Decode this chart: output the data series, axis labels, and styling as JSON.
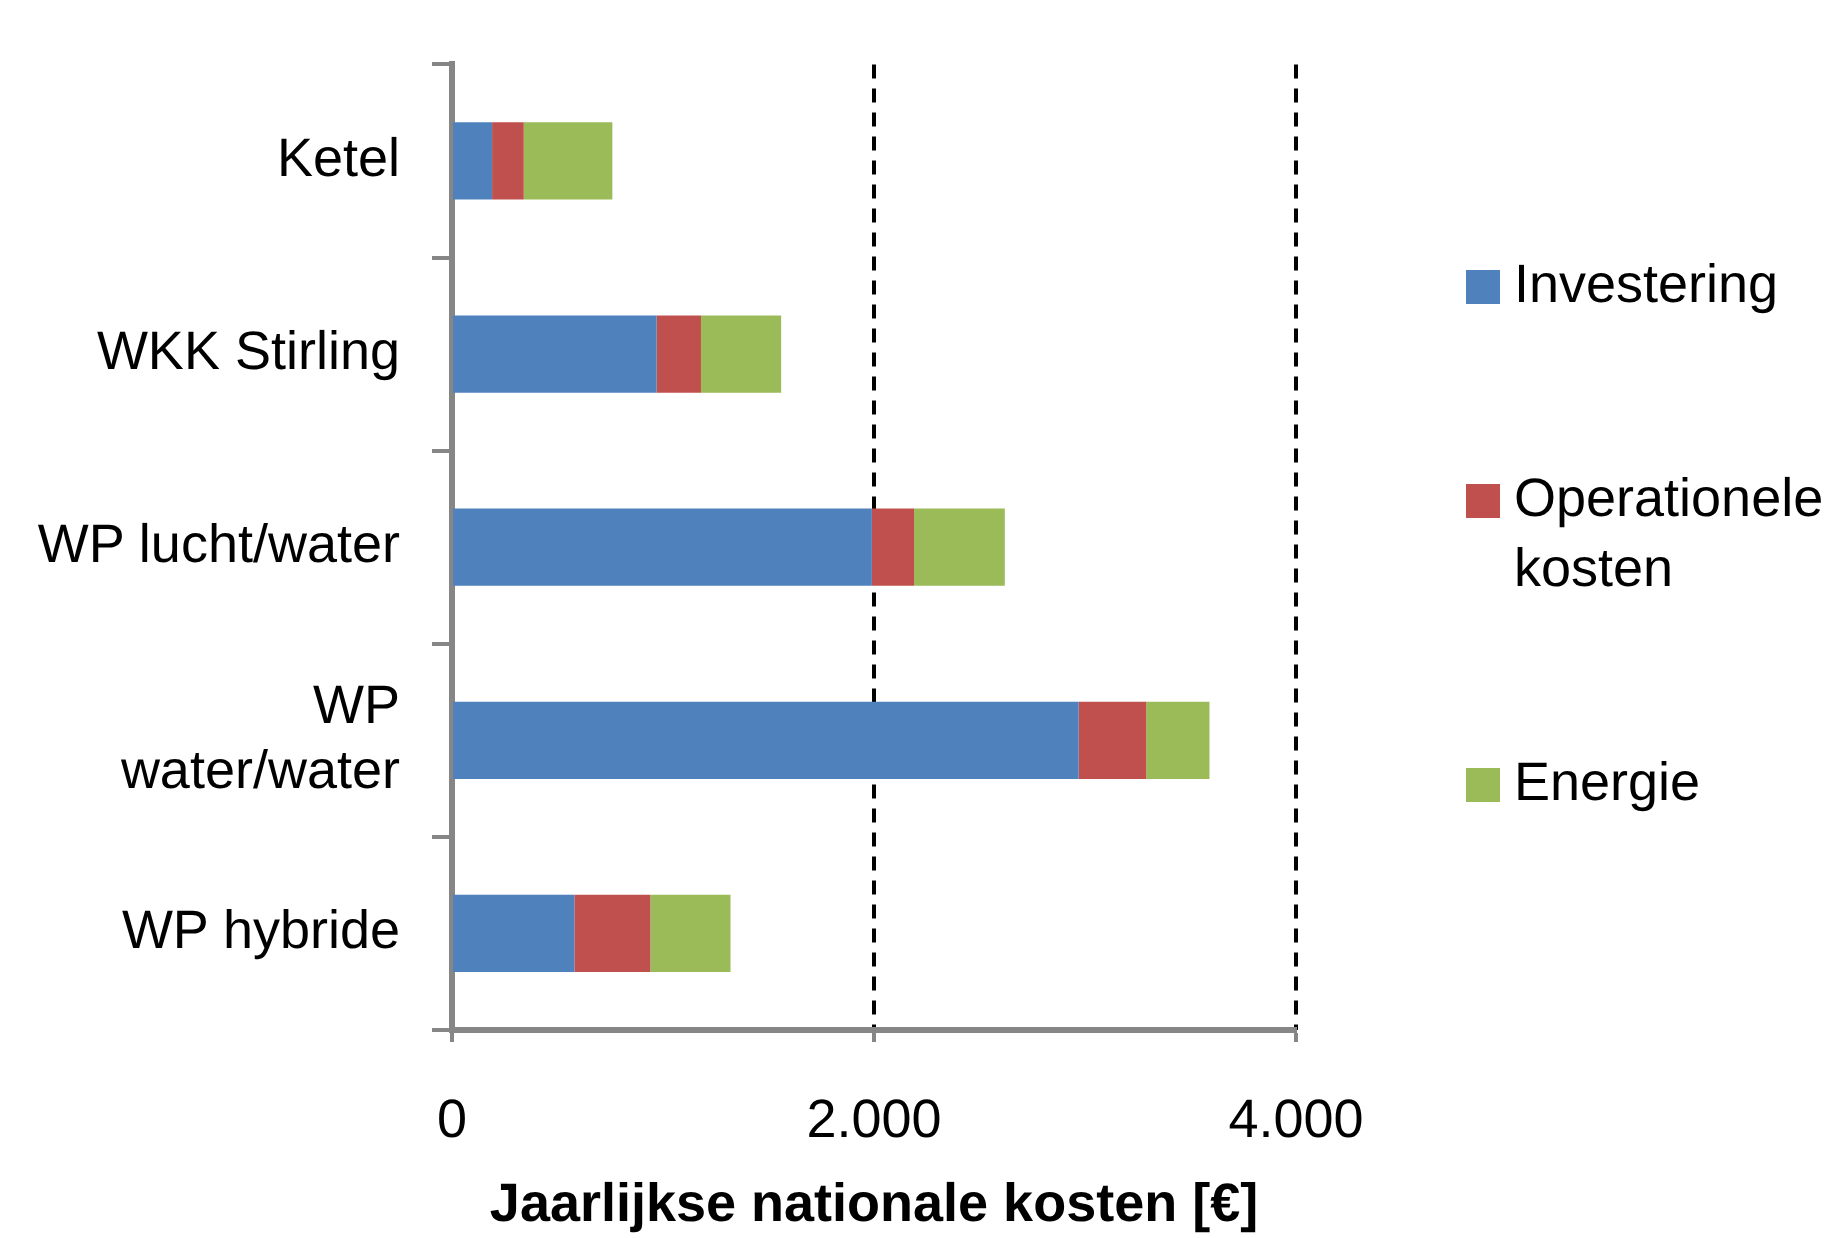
{
  "chart_data": {
    "type": "bar",
    "orientation": "horizontal",
    "stacked": true,
    "xlabel": "Jaarlijkse nationale kosten [€]",
    "categories": [
      "Ketel",
      "WKK Stirling",
      "WP lucht/water",
      "WP water/water",
      "WP hybride"
    ],
    "series": [
      {
        "name": "Investering",
        "color": "#4f81bd",
        "values": [
          190,
          970,
          1990,
          2970,
          580
        ]
      },
      {
        "name": "Operationele kosten",
        "color": "#c0504d",
        "values": [
          150,
          210,
          200,
          320,
          360
        ]
      },
      {
        "name": "Energie",
        "color": "#9bbb59",
        "values": [
          420,
          380,
          430,
          300,
          380
        ]
      }
    ],
    "xlim": [
      0,
      4000
    ],
    "xticks": [
      0,
      {
        "value": 2000,
        "label": "2.000"
      },
      {
        "value": 4000,
        "label": "4.000"
      }
    ],
    "grid": "x",
    "legend": "right"
  }
}
